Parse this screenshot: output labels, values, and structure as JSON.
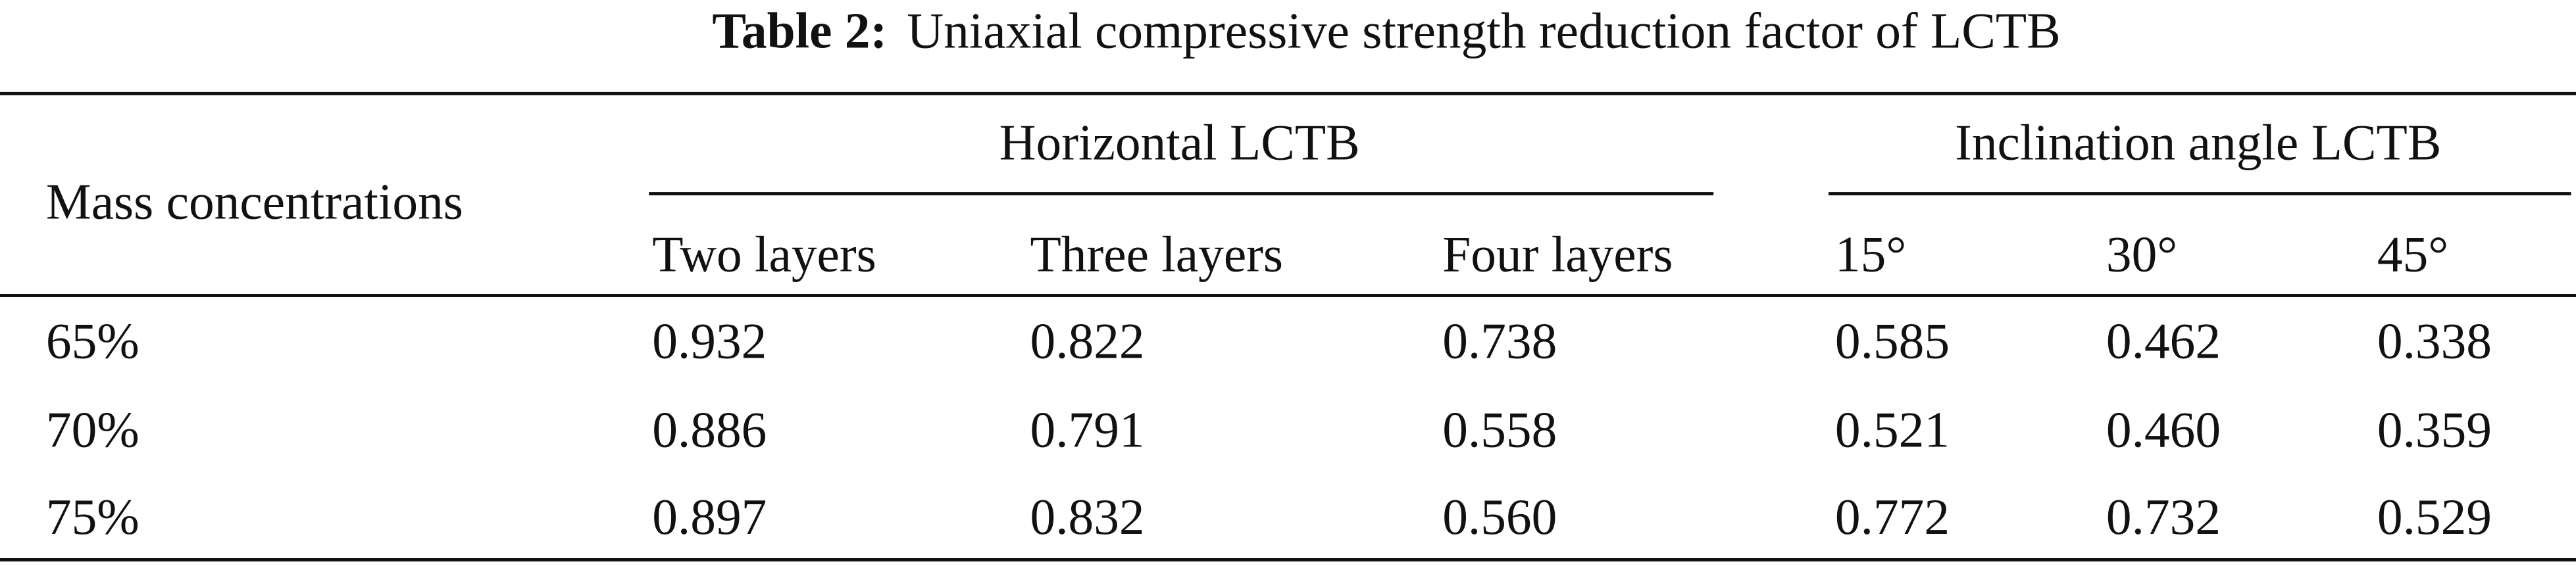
{
  "header": {
    "label": "Table 2:",
    "title": "Uniaxial compressive strength reduction factor of LCTB"
  },
  "table": {
    "row_header": "Mass concentrations",
    "groups": [
      "Horizontal LCTB",
      "Inclination angle LCTB"
    ],
    "columns": [
      "Two layers",
      "Three layers",
      "Four layers",
      "15°",
      "30°",
      "45°"
    ],
    "rows": [
      [
        "65%",
        "0.932",
        "0.822",
        "0.738",
        "0.585",
        "0.462",
        "0.338"
      ],
      [
        "70%",
        "0.886",
        "0.791",
        "0.558",
        "0.521",
        "0.460",
        "0.359"
      ],
      [
        "75%",
        "0.897",
        "0.832",
        "0.560",
        "0.772",
        "0.732",
        "0.529"
      ]
    ]
  }
}
